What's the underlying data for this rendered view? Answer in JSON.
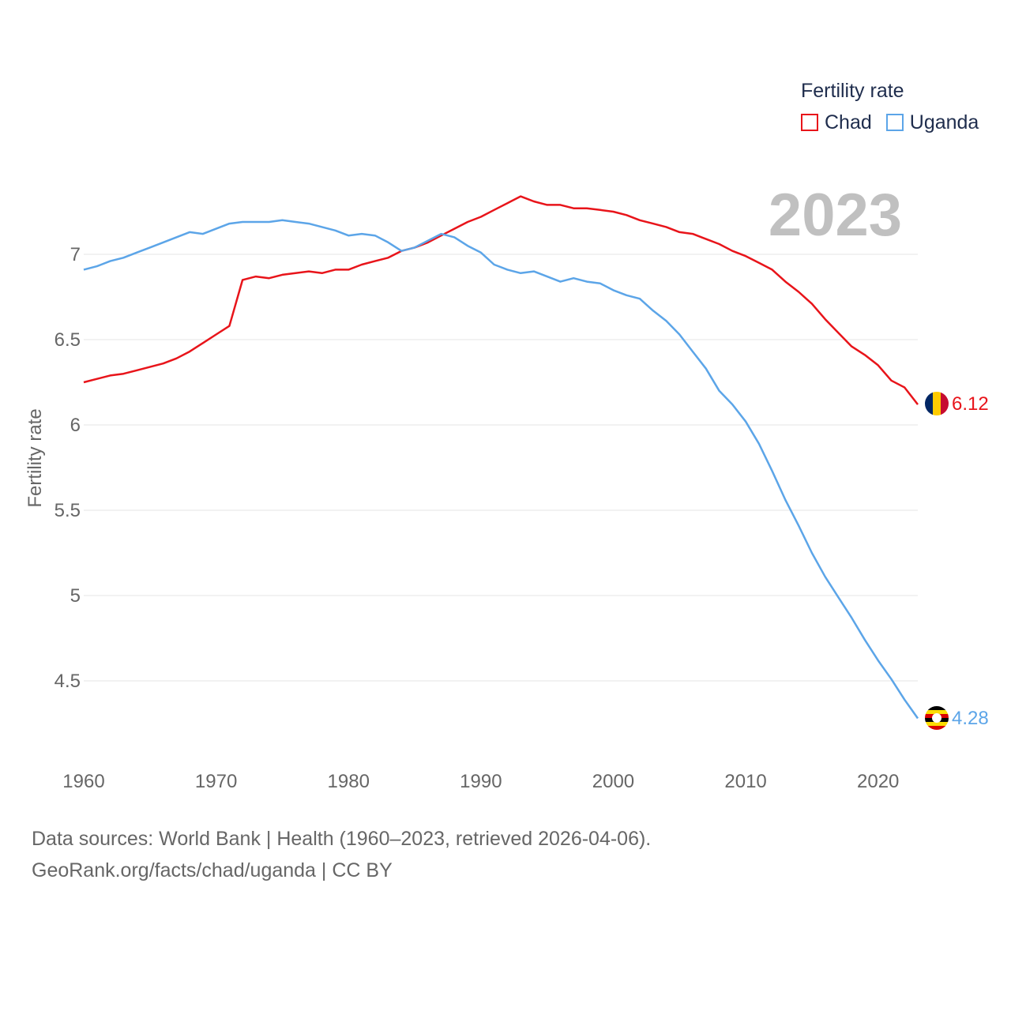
{
  "chart_data": {
    "type": "line",
    "ylabel": "Fertility rate",
    "xlabel": "",
    "xlim": [
      1960,
      2023
    ],
    "ylim": [
      4.2,
      7.4
    ],
    "yticks": [
      4.5,
      5,
      5.5,
      6,
      6.5,
      7
    ],
    "ytick_labels": [
      "4.5",
      "5",
      "5.5",
      "6",
      "6.5",
      "7"
    ],
    "xticks": [
      1960,
      1970,
      1980,
      1990,
      2000,
      2010,
      2020
    ],
    "xtick_labels": [
      "1960",
      "1970",
      "1980",
      "1990",
      "2000",
      "2010",
      "2020"
    ],
    "legend": {
      "title": "Fertility rate",
      "position": "top-right"
    },
    "year_label": "2023",
    "x": [
      1960,
      1961,
      1962,
      1963,
      1964,
      1965,
      1966,
      1967,
      1968,
      1969,
      1970,
      1971,
      1972,
      1973,
      1974,
      1975,
      1976,
      1977,
      1978,
      1979,
      1980,
      1981,
      1982,
      1983,
      1984,
      1985,
      1986,
      1987,
      1988,
      1989,
      1990,
      1991,
      1992,
      1993,
      1994,
      1995,
      1996,
      1997,
      1998,
      1999,
      2000,
      2001,
      2002,
      2003,
      2004,
      2005,
      2006,
      2007,
      2008,
      2009,
      2010,
      2011,
      2012,
      2013,
      2014,
      2015,
      2016,
      2017,
      2018,
      2019,
      2020,
      2021,
      2022,
      2023
    ],
    "series": [
      {
        "name": "Chad",
        "color": "#e8141a",
        "end_label": "6.12",
        "values": [
          6.25,
          6.27,
          6.29,
          6.3,
          6.32,
          6.34,
          6.36,
          6.39,
          6.43,
          6.48,
          6.53,
          6.58,
          6.85,
          6.87,
          6.86,
          6.88,
          6.89,
          6.9,
          6.89,
          6.91,
          6.91,
          6.94,
          6.96,
          6.98,
          7.02,
          7.04,
          7.07,
          7.11,
          7.15,
          7.19,
          7.22,
          7.26,
          7.3,
          7.34,
          7.31,
          7.29,
          7.29,
          7.27,
          7.27,
          7.26,
          7.25,
          7.23,
          7.2,
          7.18,
          7.16,
          7.13,
          7.12,
          7.09,
          7.06,
          7.02,
          6.99,
          6.95,
          6.91,
          6.84,
          6.78,
          6.71,
          6.62,
          6.54,
          6.46,
          6.41,
          6.35,
          6.26,
          6.22,
          6.12
        ]
      },
      {
        "name": "Uganda",
        "color": "#5ca5e8",
        "end_label": "4.28",
        "values": [
          6.91,
          6.93,
          6.96,
          6.98,
          7.01,
          7.04,
          7.07,
          7.1,
          7.13,
          7.12,
          7.15,
          7.18,
          7.19,
          7.19,
          7.19,
          7.2,
          7.19,
          7.18,
          7.16,
          7.14,
          7.11,
          7.12,
          7.11,
          7.07,
          7.02,
          7.04,
          7.08,
          7.12,
          7.1,
          7.05,
          7.01,
          6.94,
          6.91,
          6.89,
          6.9,
          6.87,
          6.84,
          6.86,
          6.84,
          6.83,
          6.79,
          6.76,
          6.74,
          6.67,
          6.61,
          6.53,
          6.43,
          6.33,
          6.2,
          6.12,
          6.02,
          5.89,
          5.73,
          5.56,
          5.41,
          5.25,
          5.11,
          4.99,
          4.87,
          4.74,
          4.62,
          4.51,
          4.39,
          4.28
        ]
      }
    ]
  },
  "footer": {
    "line1": "Data sources: World Bank | Health (1960–2023, retrieved 2026-04-06).",
    "line2": "GeoRank.org/facts/chad/uganda | CC BY"
  },
  "flags": {
    "chad": "chad-flag-icon",
    "uganda": "uganda-flag-icon"
  }
}
